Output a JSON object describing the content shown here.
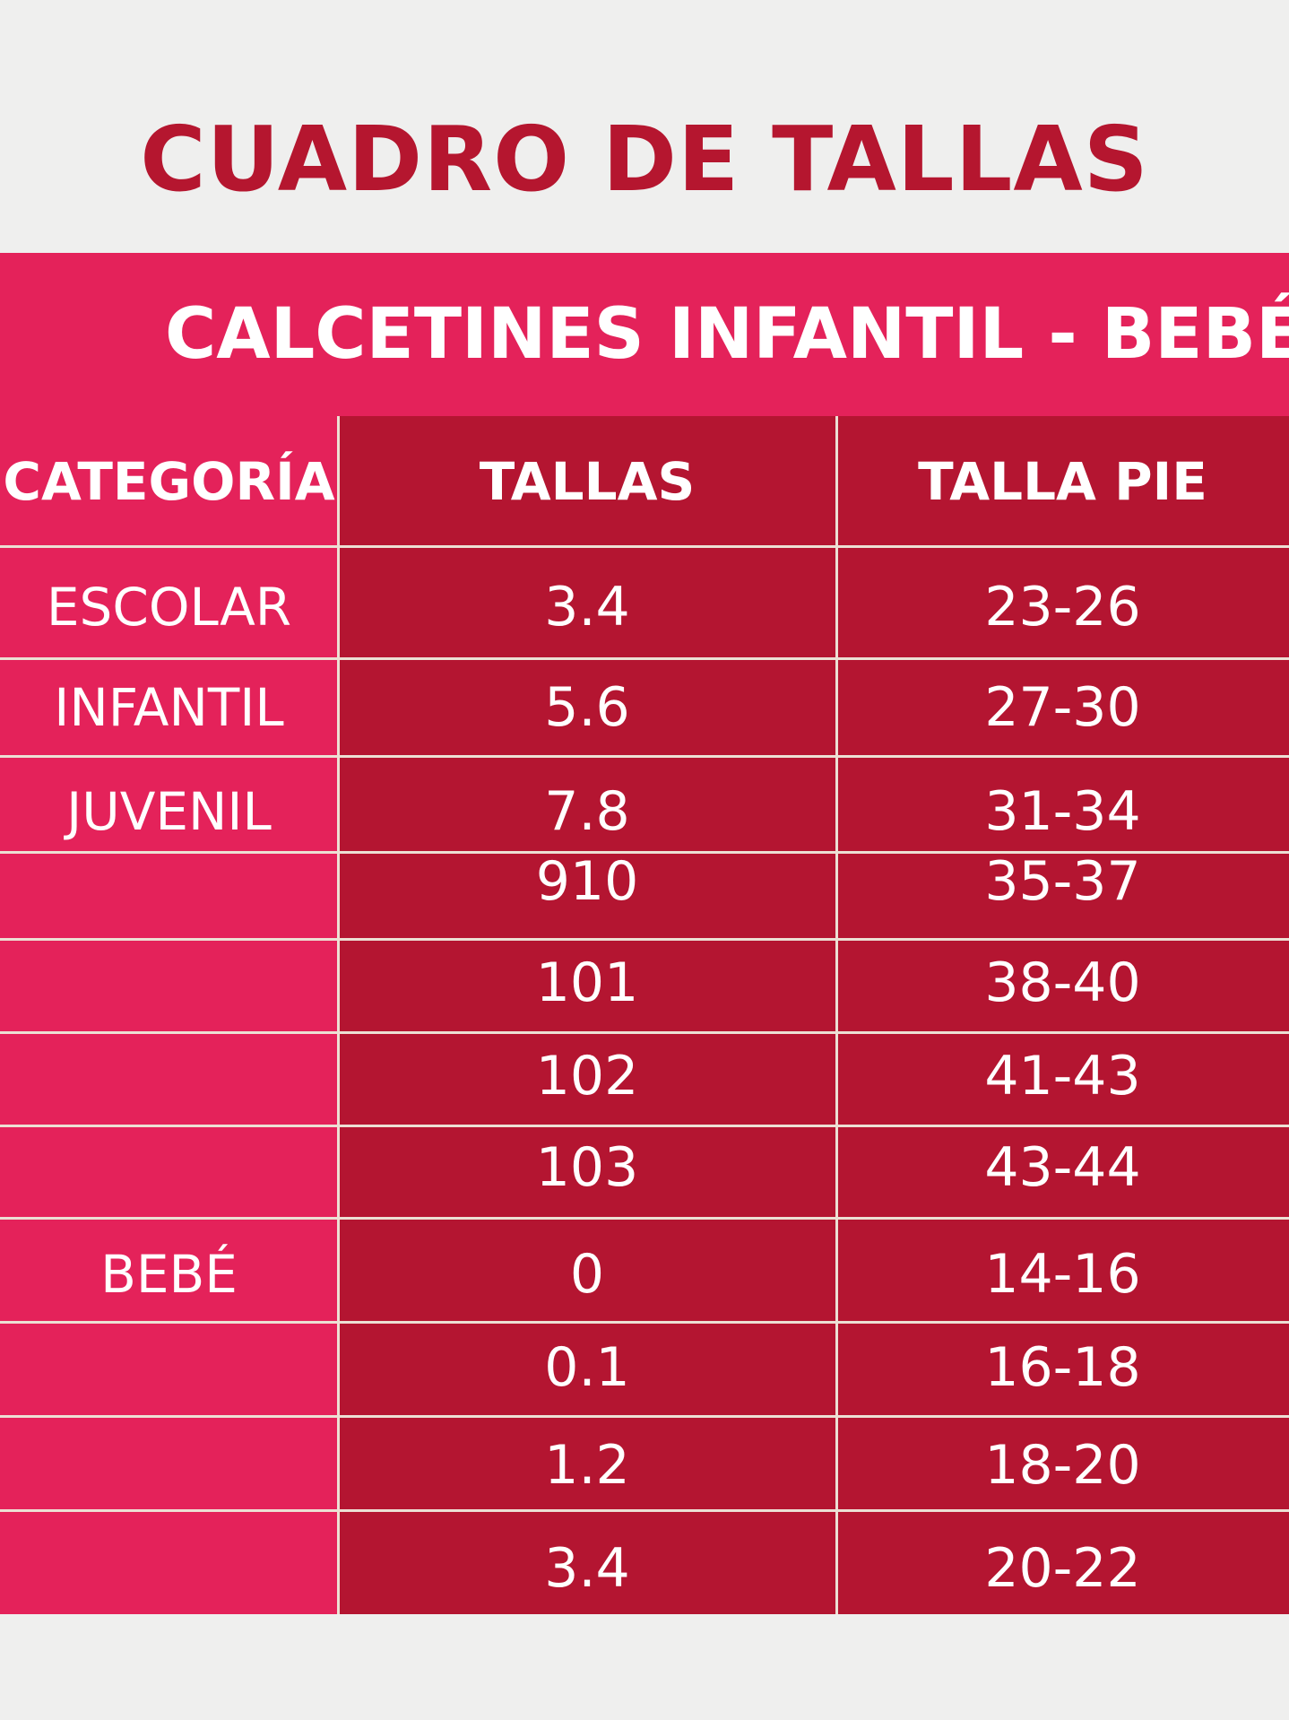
{
  "title": "CUADRO DE TALLAS",
  "subtitle": "CALCETINES INFANTIL - BEBÉ",
  "colors": {
    "background": "#efefee",
    "title": "#b5162f",
    "banner": "#e4225a",
    "category_column": "#e4225a",
    "data_columns": "#b41531",
    "grid_lines": "#ece0d4",
    "text": "#ffffff"
  },
  "table": {
    "headers": [
      "CATEGORÍA",
      "TALLAS",
      "TALLA PIE"
    ],
    "rows": [
      {
        "category": "ESCOLAR",
        "talla": "3.4",
        "talla_pie": "23-26"
      },
      {
        "category": "INFANTIL",
        "talla": "5.6",
        "talla_pie": "27-30"
      },
      {
        "category": "JUVENIL",
        "talla": "7.8",
        "talla_pie": "31-34"
      },
      {
        "category": "",
        "talla": "910",
        "talla_pie": "35-37"
      },
      {
        "category": "",
        "talla": "101",
        "talla_pie": "38-40"
      },
      {
        "category": "",
        "talla": "102",
        "talla_pie": "41-43"
      },
      {
        "category": "",
        "talla": "103",
        "talla_pie": "43-44"
      },
      {
        "category": "BEBÉ",
        "talla": "0",
        "talla_pie": "14-16"
      },
      {
        "category": "",
        "talla": "0.1",
        "talla_pie": "16-18"
      },
      {
        "category": "",
        "talla": "1.2",
        "talla_pie": "18-20"
      },
      {
        "category": "",
        "talla": "3.4",
        "talla_pie": "20-22"
      }
    ]
  }
}
